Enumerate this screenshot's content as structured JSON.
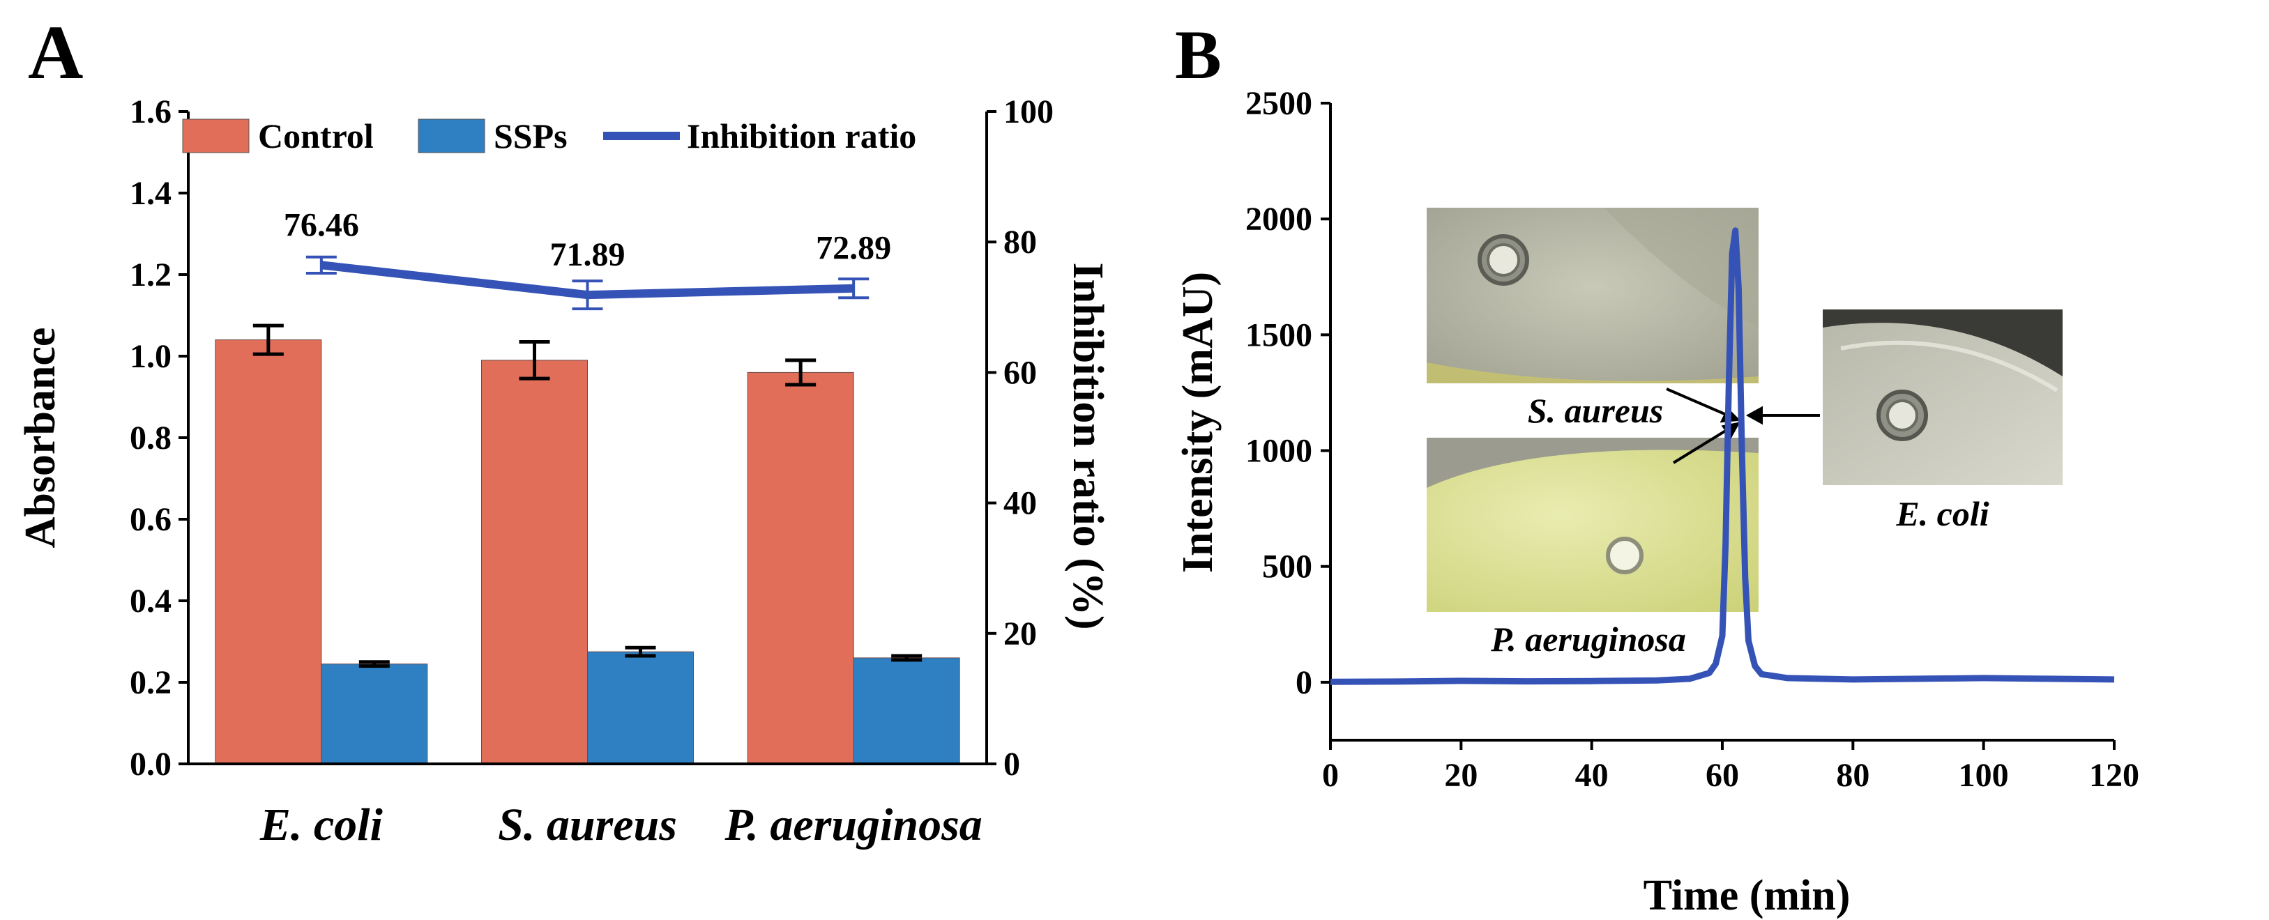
{
  "panel_a_label": "A",
  "panel_b_label": "B",
  "colors": {
    "control": "#E06E59",
    "ssps": "#2F80C3",
    "ratio_line": "#3552B6",
    "peak_line": "#3552B6"
  },
  "chart_data": [
    {
      "type": "bar",
      "panel": "A",
      "categories": [
        "E. coli",
        "S. aureus",
        "P. aeruginosa"
      ],
      "series": [
        {
          "name": "Control",
          "values": [
            1.04,
            0.99,
            0.96
          ],
          "errors": [
            0.035,
            0.045,
            0.03
          ]
        },
        {
          "name": "SSPs",
          "values": [
            0.245,
            0.275,
            0.26
          ],
          "errors": [
            0.005,
            0.01,
            0.005
          ]
        }
      ],
      "line_series": {
        "name": "Inhibition ratio",
        "values": [
          76.46,
          71.89,
          72.89
        ],
        "errors": [
          0.6,
          1.5,
          0.8
        ],
        "labels": [
          "76.46",
          "71.89",
          "72.89"
        ]
      },
      "ylabel": "Absorbance",
      "ylim": [
        0.0,
        1.6
      ],
      "yticks": [
        "0.0",
        "0.2",
        "0.4",
        "0.6",
        "0.8",
        "1.0",
        "1.2",
        "1.4",
        "1.6"
      ],
      "y2label": "Inhibition ratio (%)",
      "y2lim": [
        0,
        100
      ],
      "y2ticks": [
        "0",
        "20",
        "40",
        "60",
        "80",
        "100"
      ],
      "legend": [
        "Control",
        "SSPs",
        "Inhibition ratio"
      ],
      "legend_position": "top"
    },
    {
      "type": "line",
      "panel": "B",
      "xlabel": "Time (min)",
      "ylabel": "Intensity (mAU)",
      "xlim": [
        0,
        120
      ],
      "ylim": [
        -250,
        2500
      ],
      "xticks": [
        "0",
        "20",
        "40",
        "60",
        "80",
        "100",
        "120"
      ],
      "yticks": [
        "0",
        "500",
        "1000",
        "1500",
        "2000",
        "2500"
      ],
      "series": [
        {
          "name": "Intensity",
          "x": [
            0,
            10,
            20,
            30,
            40,
            50,
            55,
            58,
            59,
            60,
            60.5,
            61,
            61.5,
            62,
            62.5,
            63,
            63.5,
            64,
            65,
            66,
            70,
            80,
            90,
            100,
            110,
            120
          ],
          "y": [
            2,
            3,
            6,
            4,
            5,
            8,
            15,
            40,
            80,
            200,
            600,
            1300,
            1850,
            1950,
            1700,
            1000,
            450,
            180,
            70,
            35,
            18,
            12,
            15,
            18,
            15,
            12
          ]
        }
      ],
      "insets": [
        {
          "label": "S. aureus",
          "position": "upper-left"
        },
        {
          "label": "P. aeruginosa",
          "position": "lower-left"
        },
        {
          "label": "E. coli",
          "position": "right"
        }
      ]
    }
  ]
}
